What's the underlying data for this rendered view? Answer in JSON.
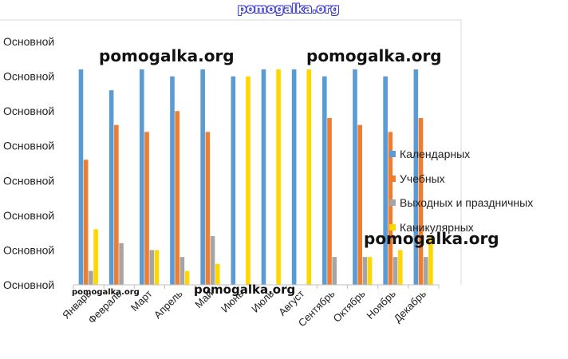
{
  "watermark": "pomogalka.org",
  "chart_data": {
    "type": "bar",
    "title": "",
    "xlabel": "",
    "ylabel": "",
    "categories": [
      "Январь",
      "Февраль",
      "Март",
      "Апрель",
      "Май",
      "Июнь",
      "Июль",
      "Август",
      "Сентябрь",
      "Октябрь",
      "Ноябрь",
      "Декабрь"
    ],
    "y_tick_labels": [
      "Основной",
      "Основной",
      "Основной",
      "Основной",
      "Основной",
      "Основной",
      "Основной",
      "Основной"
    ],
    "ylim": [
      0,
      31
    ],
    "grid": false,
    "legend_position": "right",
    "series": [
      {
        "name": "Календарных",
        "color": "#5B9BD5",
        "values": [
          31,
          28,
          31,
          30,
          31,
          30,
          31,
          31,
          30,
          31,
          30,
          31
        ]
      },
      {
        "name": "Учебных",
        "color": "#ED7D31",
        "values": [
          18,
          23,
          22,
          25,
          22,
          0,
          0,
          0,
          24,
          23,
          22,
          24
        ]
      },
      {
        "name": "Выходных и праздничных",
        "color": "#A5A5A5",
        "values": [
          2,
          6,
          5,
          4,
          7,
          0,
          0,
          0,
          4,
          4,
          4,
          4
        ]
      },
      {
        "name": "Каникулярных",
        "color": "#FFD700",
        "values": [
          8,
          0,
          5,
          2,
          3,
          30,
          31,
          31,
          0,
          4,
          5,
          7
        ]
      }
    ]
  }
}
